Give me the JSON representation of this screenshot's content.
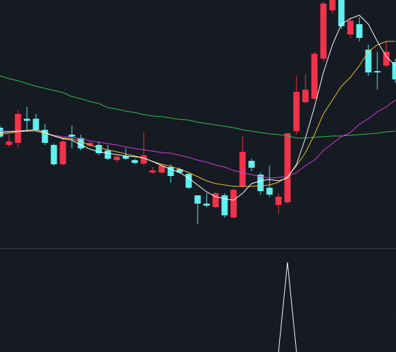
{
  "chart_data": [
    {
      "type": "candlestick",
      "ylim": [
        0,
        360
      ],
      "up_color": "#f0334b",
      "down_color": "#5ff0f0",
      "open": [
        175,
        150,
        153,
        188,
        188,
        172,
        150,
        122,
        165,
        160,
        149,
        150,
        142,
        128,
        134,
        128,
        123,
        110,
        110,
        118,
        115,
        108,
        77,
        65,
        60,
        77,
        45,
        90,
        127,
        107,
        88,
        63,
        67,
        170,
        212,
        217,
        275,
        345,
        360,
        310,
        325,
        288,
        257,
        265,
        270
      ],
      "high": [
        178,
        165,
        200,
        205,
        195,
        180,
        152,
        160,
        178,
        165,
        155,
        155,
        150,
        135,
        145,
        130,
        168,
        118,
        122,
        122,
        117,
        110,
        77,
        80,
        82,
        80,
        87,
        162,
        130,
        110,
        120,
        80,
        167,
        250,
        252,
        285,
        358,
        360,
        360,
        335,
        335,
        295,
        285,
        300,
        275
      ],
      "low": [
        160,
        147,
        145,
        170,
        170,
        150,
        120,
        120,
        145,
        142,
        147,
        135,
        128,
        125,
        128,
        122,
        120,
        108,
        108,
        95,
        108,
        86,
        35,
        60,
        58,
        45,
        43,
        88,
        112,
        78,
        75,
        50,
        65,
        165,
        210,
        215,
        270,
        340,
        318,
        305,
        300,
        250,
        230,
        262,
        240
      ],
      "close": [
        162,
        155,
        195,
        185,
        172,
        153,
        122,
        155,
        162,
        145,
        153,
        138,
        130,
        133,
        130,
        124,
        135,
        113,
        120,
        105,
        110,
        88,
        65,
        62,
        80,
        48,
        85,
        140,
        117,
        83,
        78,
        75,
        167,
        227,
        230,
        282,
        355,
        360,
        322,
        330,
        305,
        255,
        255,
        285,
        245
      ],
      "series": [
        {
          "color": "#2fc24a",
          "values": [
            250,
            246,
            243,
            239,
            235,
            232,
            229,
            226,
            220,
            217,
            213,
            210,
            204,
            202,
            199,
            197,
            194,
            192,
            191,
            189,
            187,
            186,
            183,
            181,
            179,
            177,
            175,
            172,
            170,
            168,
            166,
            165,
            163,
            160,
            160,
            161,
            162,
            163,
            163,
            164,
            165,
            166,
            167,
            169,
            170
          ]
        },
        {
          "color": "#d23ee0",
          "values": [
            170,
            170,
            170,
            170,
            170,
            167,
            164,
            162,
            161,
            159,
            156,
            154,
            152,
            150,
            147,
            145,
            143,
            141,
            139,
            138,
            135,
            132,
            128,
            125,
            121,
            118,
            113,
            110,
            107,
            104,
            102,
            103,
            104,
            110,
            120,
            128,
            142,
            152,
            162,
            168,
            180,
            188,
            198,
            205,
            215
          ]
        },
        {
          "color": "#e8c53a",
          "values": [
            165,
            167,
            169,
            170,
            170,
            167,
            163,
            160,
            159,
            155,
            150,
            146,
            143,
            140,
            137,
            134,
            131,
            126,
            122,
            119,
            115,
            110,
            104,
            98,
            94,
            92,
            90,
            90,
            90,
            91,
            92,
            96,
            104,
            120,
            139,
            165,
            195,
            215,
            235,
            248,
            265,
            285,
            295,
            300,
            300
          ]
        },
        {
          "color": "#ffffff",
          "values": [
            168,
            169,
            170,
            171,
            172,
            168,
            163,
            159,
            157,
            150,
            144,
            140,
            138,
            136,
            134,
            133,
            131,
            126,
            120,
            115,
            110,
            102,
            92,
            82,
            75,
            72,
            70,
            80,
            94,
            98,
            100,
            98,
            102,
            122,
            160,
            205,
            255,
            295,
            325,
            333,
            338,
            325,
            300,
            278,
            265
          ]
        }
      ]
    },
    {
      "type": "line",
      "ylim": [
        0,
        130
      ],
      "series": [
        {
          "color": "#ffffff",
          "values": [
            null,
            null,
            null,
            null,
            null,
            null,
            null,
            null,
            null,
            null,
            null,
            null,
            null,
            null,
            null,
            null,
            null,
            null,
            null,
            null,
            null,
            null,
            null,
            null,
            null,
            null,
            null,
            null,
            null,
            null,
            null,
            0,
            130,
            0,
            null,
            null,
            null,
            null,
            null,
            null,
            null,
            null,
            null,
            null,
            null
          ]
        }
      ]
    }
  ]
}
